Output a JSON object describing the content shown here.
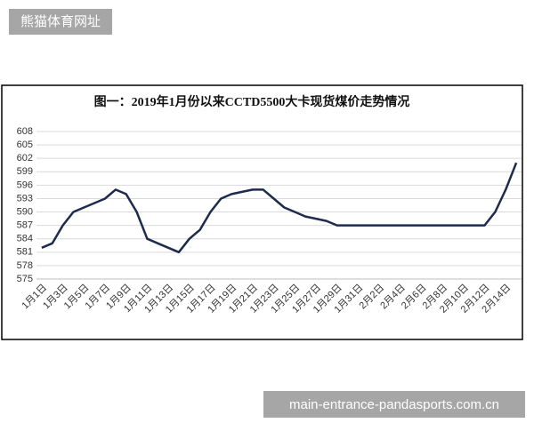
{
  "header": {
    "badge": "熊猫体育网址"
  },
  "footer": {
    "watermark": "main-entrance-pandasports.com.cn"
  },
  "chart_data": {
    "type": "line",
    "title": "图一：2019年1月份以来CCTD5500大卡现货煤价走势情况",
    "categories": [
      "1月1日",
      null,
      "1月3日",
      null,
      "1月5日",
      null,
      "1月7日",
      null,
      "1月9日",
      null,
      "1月11日",
      null,
      "1月13日",
      null,
      "1月15日",
      null,
      "1月17日",
      null,
      "1月19日",
      null,
      "1月21日",
      null,
      "1月23日",
      null,
      "1月25日",
      null,
      "1月27日",
      null,
      "1月29日",
      null,
      "1月31日",
      null,
      "2月2日",
      null,
      "2月4日",
      null,
      "2月6日",
      null,
      "2月8日",
      null,
      "2月10日",
      null,
      "2月12日",
      null,
      "2月14日",
      null
    ],
    "values": [
      582,
      583,
      587,
      590,
      591,
      592,
      593,
      595,
      594,
      590,
      584,
      583,
      582,
      581,
      584,
      586,
      590,
      593,
      594,
      594.5,
      595,
      595,
      593,
      591,
      590,
      589,
      588.5,
      588,
      587,
      587,
      587,
      587,
      587,
      587,
      587,
      587,
      587,
      587,
      587,
      587,
      587,
      587,
      587,
      590,
      595,
      601
    ],
    "color": "#1c2b4e",
    "ylim": [
      575,
      608
    ],
    "yticks": [
      575,
      578,
      581,
      584,
      587,
      590,
      593,
      596,
      599,
      602,
      605,
      608
    ],
    "grid": true
  }
}
